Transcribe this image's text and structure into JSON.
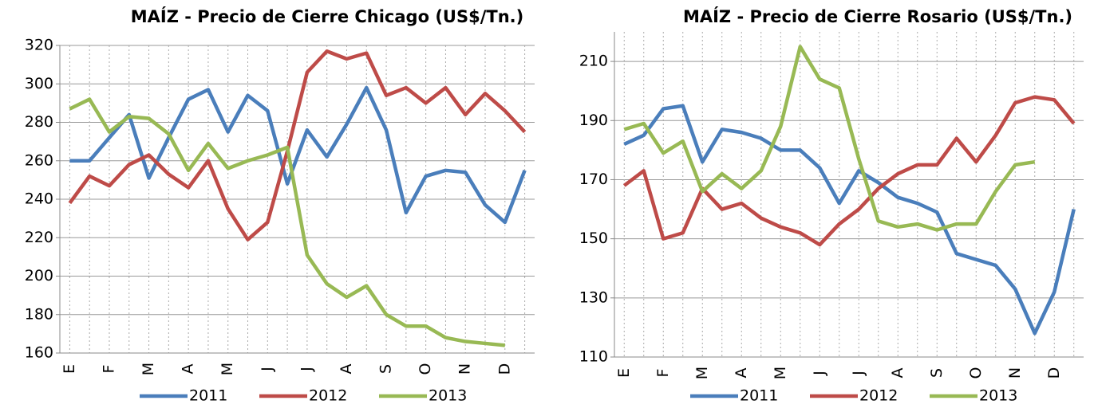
{
  "chart_data": [
    {
      "type": "line",
      "title": "MAÍZ - Precio de Cierre Chicago (US$/Tn.)",
      "categories": [
        "E",
        null,
        "F",
        null,
        "M",
        null,
        "A",
        null,
        "M",
        null,
        "J",
        null,
        "J",
        null,
        "A",
        null,
        "S",
        null,
        "O",
        null,
        "N",
        null,
        "D",
        null
      ],
      "series": [
        {
          "name": "2011",
          "color": "#4a7ebb",
          "values": [
            260,
            260,
            272,
            284,
            251,
            272,
            292,
            297,
            275,
            294,
            286,
            248,
            276,
            262,
            279,
            298,
            276,
            233,
            252,
            255,
            254,
            237,
            228,
            255
          ]
        },
        {
          "name": "2012",
          "color": "#be4b48",
          "values": [
            238,
            252,
            247,
            258,
            263,
            253,
            246,
            260,
            235,
            219,
            228,
            265,
            306,
            317,
            313,
            316,
            294,
            298,
            290,
            298,
            284,
            295,
            286,
            275
          ]
        },
        {
          "name": "2013",
          "color": "#98b954",
          "values": [
            287,
            292,
            275,
            283,
            282,
            274,
            255,
            269,
            256,
            260,
            263,
            267,
            211,
            196,
            189,
            195,
            180,
            174,
            174,
            168,
            166,
            165,
            164,
            null
          ]
        }
      ],
      "ylim": [
        160,
        320
      ],
      "yticks": [
        160,
        180,
        200,
        220,
        240,
        260,
        280,
        300,
        320
      ],
      "grid": true,
      "legend": "bottom"
    },
    {
      "type": "line",
      "title": "MAÍZ - Precio de Cierre Rosario (US$/Tn.)",
      "categories": [
        "E",
        null,
        "F",
        null,
        "M",
        null,
        "A",
        null,
        "M",
        null,
        "J",
        null,
        "J",
        null,
        "A",
        null,
        "S",
        null,
        "O",
        null,
        "N",
        null,
        "D",
        null
      ],
      "series": [
        {
          "name": "2011",
          "color": "#4a7ebb",
          "values": [
            182,
            185,
            194,
            195,
            176,
            187,
            186,
            184,
            180,
            180,
            174,
            162,
            173,
            169,
            164,
            162,
            159,
            145,
            143,
            141,
            133,
            118,
            132,
            160
          ]
        },
        {
          "name": "2012",
          "color": "#be4b48",
          "values": [
            168,
            173,
            150,
            152,
            167,
            160,
            162,
            157,
            154,
            152,
            148,
            155,
            160,
            167,
            172,
            175,
            175,
            184,
            176,
            185,
            196,
            198,
            197,
            189
          ]
        },
        {
          "name": "2013",
          "color": "#98b954",
          "values": [
            187,
            189,
            179,
            183,
            166,
            172,
            167,
            173,
            188,
            215,
            204,
            201,
            177,
            156,
            154,
            155,
            153,
            155,
            155,
            166,
            175,
            176,
            null,
            null
          ]
        }
      ],
      "ylim": [
        110,
        220
      ],
      "yticks": [
        110,
        130,
        150,
        170,
        190,
        210
      ],
      "grid": true,
      "legend": "bottom"
    }
  ]
}
